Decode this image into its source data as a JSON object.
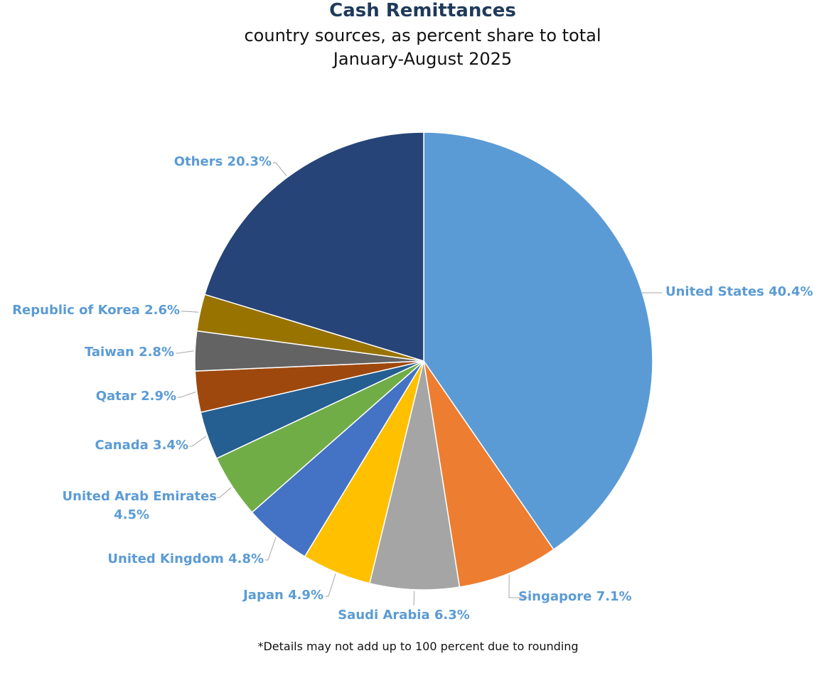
{
  "title": "Cash Remittances",
  "subtitle_line1": "country sources, as percent share to total",
  "subtitle_line2": "January-August 2025",
  "footnote": "*Details may not add up to 100 percent due to rounding",
  "chart_data": {
    "type": "pie",
    "slices": [
      {
        "label": "United States",
        "value": 40.4,
        "display": "40.4%",
        "color": "#5b9bd5"
      },
      {
        "label": "Singapore",
        "value": 7.1,
        "display": "7.1%",
        "color": "#ed7d31"
      },
      {
        "label": "Saudi Arabia",
        "value": 6.3,
        "display": "6.3%",
        "color": "#a5a5a5"
      },
      {
        "label": "Japan",
        "value": 4.9,
        "display": "4.9%",
        "color": "#ffc000"
      },
      {
        "label": "United Kingdom",
        "value": 4.8,
        "display": "4.8%",
        "color": "#4472c4"
      },
      {
        "label": "United Arab Emirates",
        "value": 4.5,
        "display": "4.5%",
        "color": "#70ad47"
      },
      {
        "label": "Canada",
        "value": 3.4,
        "display": "3.4%",
        "color": "#255e91"
      },
      {
        "label": "Qatar",
        "value": 2.9,
        "display": "2.9%",
        "color": "#9e480e"
      },
      {
        "label": "Taiwan",
        "value": 2.8,
        "display": "2.8%",
        "color": "#636363"
      },
      {
        "label": "Republic of Korea",
        "value": 2.6,
        "display": "2.6%",
        "color": "#997300"
      },
      {
        "label": "Others",
        "value": 20.3,
        "display": "20.3%",
        "color": "#264478"
      }
    ],
    "legend": "none",
    "label_style": "outside with leader lines"
  }
}
